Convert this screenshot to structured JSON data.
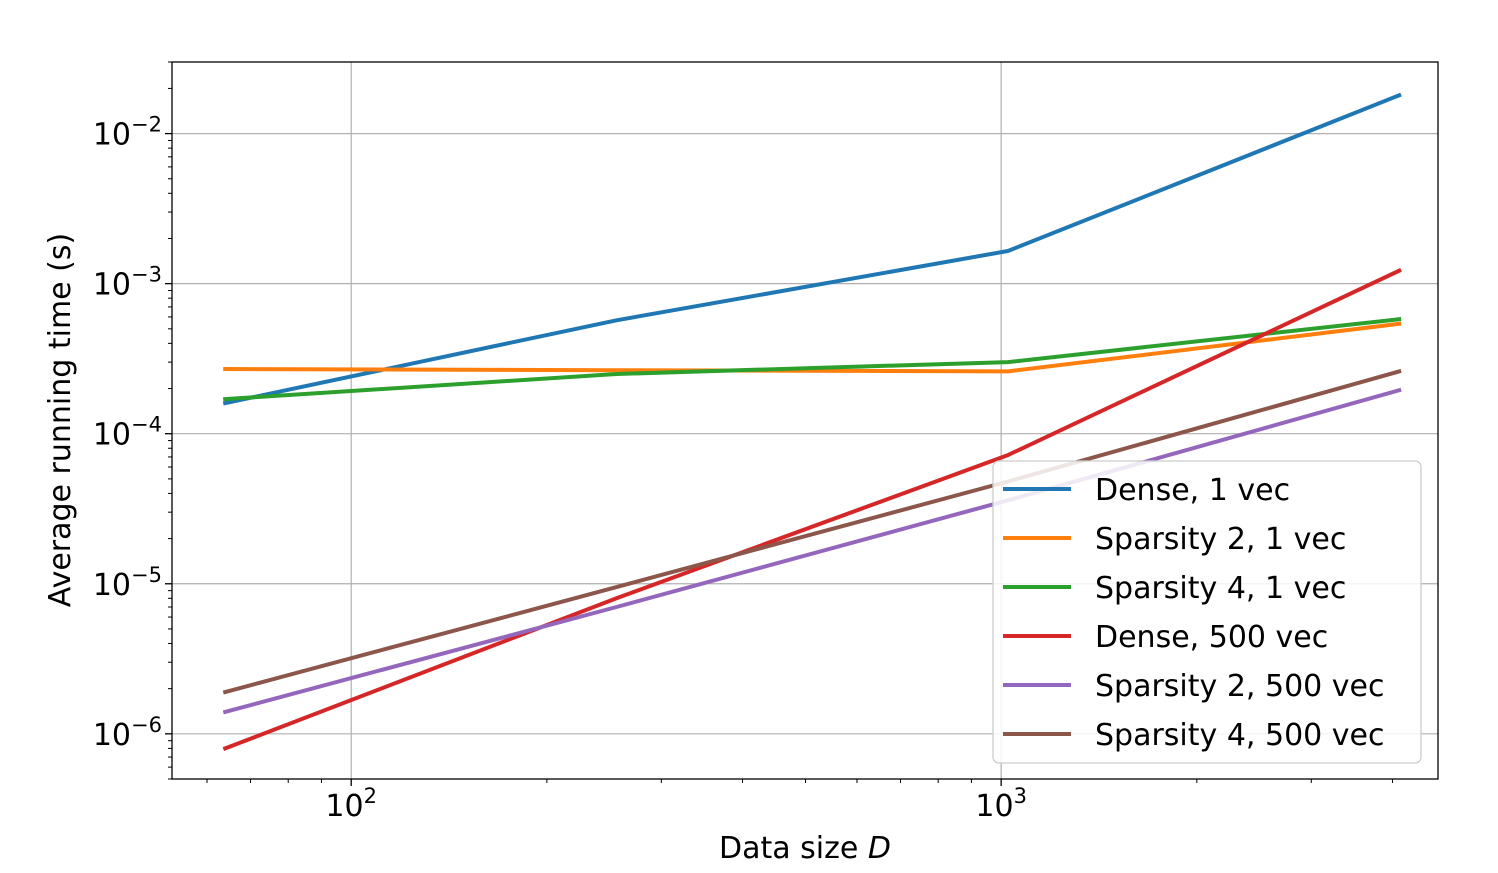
{
  "chart_data": {
    "type": "line",
    "xlabel": "Data size",
    "xlabel_var": "D",
    "ylabel": "Average running time (s)",
    "xscale": "log",
    "yscale": "log",
    "xlim": [
      53,
      4700
    ],
    "ylim": [
      5e-07,
      0.03
    ],
    "grid": true,
    "legend_position": "lower-right",
    "x_ticks": [
      {
        "value": 100,
        "base": "10",
        "exp": "2"
      },
      {
        "value": 1000,
        "base": "10",
        "exp": "3"
      }
    ],
    "y_ticks": [
      {
        "value": 0.01,
        "base": "10",
        "exp": "−2"
      },
      {
        "value": 0.001,
        "base": "10",
        "exp": "−3"
      },
      {
        "value": 0.0001,
        "base": "10",
        "exp": "−4"
      },
      {
        "value": 1e-05,
        "base": "10",
        "exp": "−5"
      },
      {
        "value": 1e-06,
        "base": "10",
        "exp": "−6"
      }
    ],
    "x": [
      64,
      256,
      1024,
      4096
    ],
    "series": [
      {
        "name": "Dense, 1 vec",
        "color": "#1f77b4",
        "values": [
          0.00016,
          0.00057,
          0.00165,
          0.018
        ]
      },
      {
        "name": "Sparsity 2, 1 vec",
        "color": "#ff7f0e",
        "values": [
          0.00027,
          0.000265,
          0.00026,
          0.00054
        ]
      },
      {
        "name": "Sparsity 4, 1 vec",
        "color": "#2ca02c",
        "values": [
          0.00017,
          0.00025,
          0.0003,
          0.00058
        ]
      },
      {
        "name": "Dense, 500 vec",
        "color": "#d62728",
        "values": [
          8e-07,
          8e-06,
          7.2e-05,
          0.00122
        ]
      },
      {
        "name": "Sparsity 2, 500 vec",
        "color": "#9467bd",
        "values": [
          1.4e-06,
          7e-06,
          3.6e-05,
          0.000195
        ]
      },
      {
        "name": "Sparsity 4, 500 vec",
        "color": "#8c564b",
        "values": [
          1.9e-06,
          9.5e-06,
          4.8e-05,
          0.00026
        ]
      }
    ]
  }
}
